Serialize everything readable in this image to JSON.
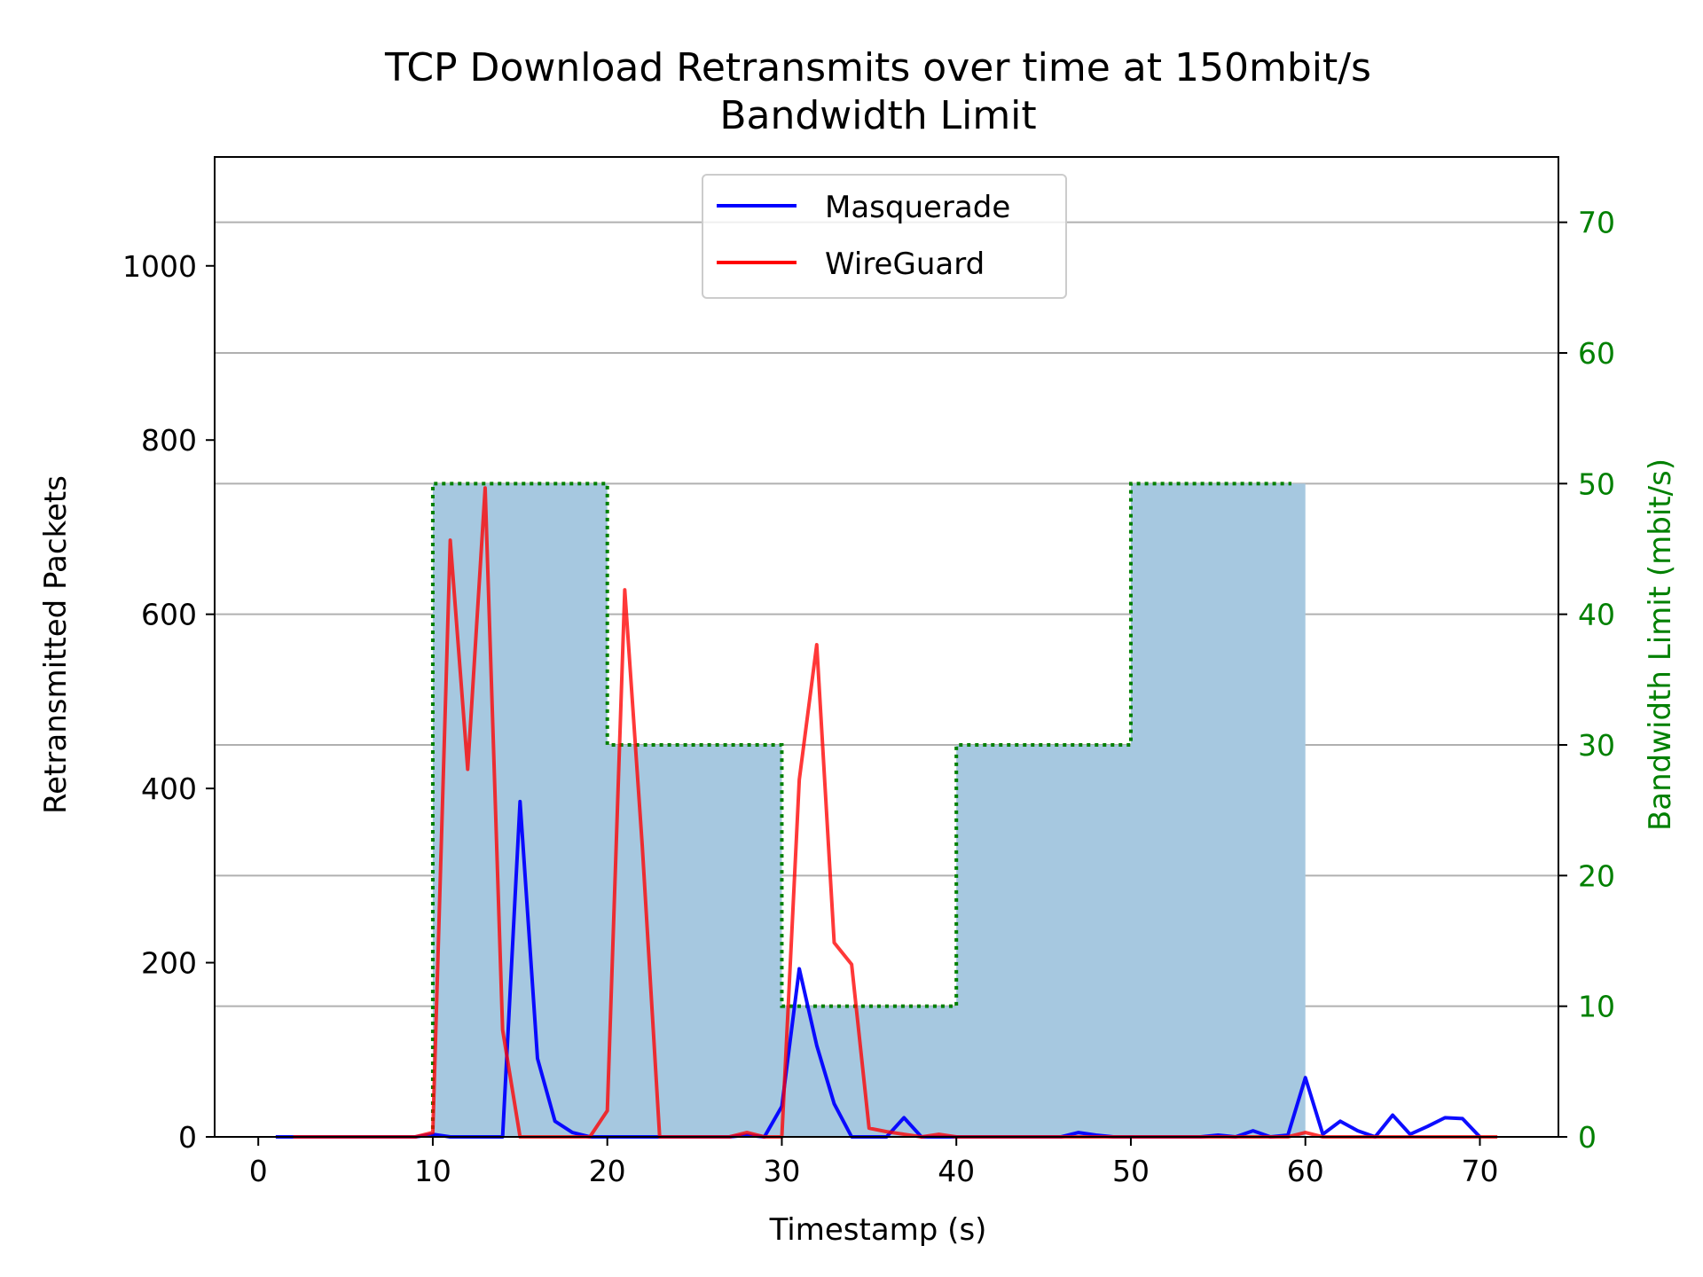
{
  "chart_data": {
    "type": "line",
    "title": "TCP Download Retransmits over time at 150mbit/s",
    "subtitle": "Bandwidth Limit",
    "xlabel": "Timestamp (s)",
    "ylabel": "Retransmitted Packets",
    "y2label": "Bandwidth Limit (mbit/s)",
    "xlim": [
      -2.5,
      74.5
    ],
    "ylim": [
      0,
      1125
    ],
    "y2lim": [
      0,
      75
    ],
    "xticks": [
      0,
      10,
      20,
      30,
      40,
      50,
      60,
      70
    ],
    "yticks": [
      0,
      200,
      400,
      600,
      800,
      1000
    ],
    "y2ticks": [
      0,
      10,
      20,
      30,
      40,
      50,
      60,
      70
    ],
    "grid": "horizontal lines at right-axis ticks",
    "legend_position": "top-center",
    "colors": {
      "masquerade": "#0000ff",
      "wireguard": "#ff0000",
      "bandwidth_fill": "#a6c8e0",
      "bandwidth_line": "#008000",
      "grid": "#b0b0b0"
    },
    "series": [
      {
        "name": "Masquerade",
        "x": [
          1,
          2,
          3,
          4,
          5,
          6,
          7,
          8,
          9,
          10,
          11,
          12,
          13,
          14,
          15,
          16,
          17,
          18,
          19,
          20,
          21,
          22,
          23,
          24,
          25,
          26,
          27,
          28,
          29,
          30,
          31,
          32,
          33,
          34,
          35,
          36,
          37,
          38,
          39,
          40,
          41,
          42,
          43,
          44,
          45,
          46,
          47,
          48,
          49,
          50,
          51,
          52,
          53,
          54,
          55,
          56,
          57,
          58,
          59,
          60,
          61,
          62,
          63,
          64,
          65,
          66,
          67,
          68,
          69,
          70
        ],
        "y": [
          0,
          0,
          0,
          0,
          0,
          0,
          0,
          0,
          0,
          3,
          0,
          0,
          0,
          0,
          385,
          90,
          18,
          5,
          0,
          0,
          0,
          0,
          0,
          0,
          0,
          0,
          0,
          2,
          0,
          35,
          193,
          105,
          38,
          0,
          0,
          0,
          22,
          0,
          0,
          0,
          0,
          0,
          0,
          0,
          0,
          0,
          5,
          2,
          0,
          0,
          0,
          0,
          0,
          0,
          2,
          0,
          7,
          0,
          2,
          68,
          3,
          18,
          7,
          0,
          25,
          3,
          12,
          22,
          21,
          0
        ]
      },
      {
        "name": "WireGuard",
        "x": [
          2,
          3,
          4,
          5,
          6,
          7,
          8,
          9,
          10,
          11,
          12,
          13,
          14,
          15,
          16,
          17,
          18,
          19,
          20,
          21,
          22,
          23,
          24,
          25,
          26,
          27,
          28,
          29,
          30,
          31,
          32,
          33,
          34,
          35,
          36,
          37,
          38,
          39,
          40,
          41,
          42,
          43,
          44,
          45,
          46,
          47,
          48,
          49,
          50,
          51,
          52,
          53,
          54,
          55,
          56,
          57,
          58,
          59,
          60,
          61,
          62,
          63,
          64,
          65,
          66,
          67,
          68,
          69,
          70,
          71
        ],
        "y": [
          0,
          0,
          0,
          0,
          0,
          0,
          0,
          0,
          5,
          685,
          422,
          745,
          123,
          0,
          0,
          0,
          0,
          0,
          30,
          628,
          335,
          0,
          0,
          0,
          0,
          0,
          5,
          0,
          0,
          410,
          565,
          223,
          198,
          10,
          6,
          3,
          0,
          3,
          0,
          0,
          0,
          0,
          0,
          0,
          0,
          0,
          0,
          0,
          0,
          0,
          0,
          0,
          0,
          0,
          0,
          0,
          0,
          0,
          5,
          0,
          0,
          0,
          0,
          0,
          0,
          0,
          0,
          0,
          0,
          0
        ]
      },
      {
        "name": "",
        "axis": "right",
        "kind": "step-fill",
        "x": [
          10,
          20,
          30,
          40,
          50,
          60
        ],
        "y": [
          50,
          30,
          10,
          30,
          50,
          50
        ]
      }
    ]
  }
}
